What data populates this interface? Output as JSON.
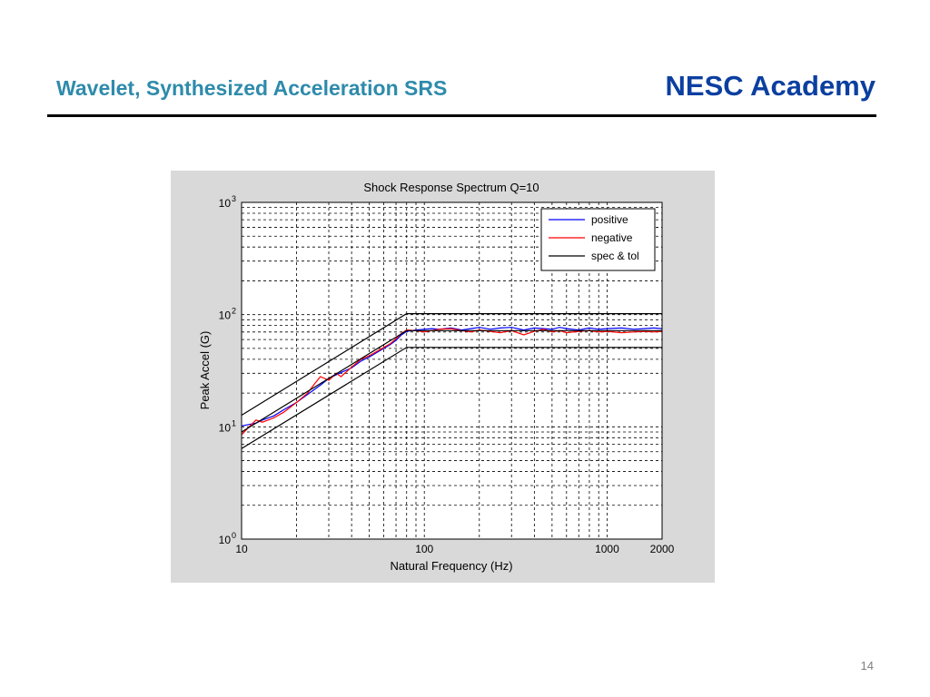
{
  "slide": {
    "title": "Wavelet, Synthesized Acceleration SRS",
    "brand": "NESC Academy",
    "page_number": "14"
  },
  "colors": {
    "title": "#2e8bab",
    "brand": "#0b3fa0",
    "figure_background": "#d9d9d9",
    "positive": "#0000ff",
    "negative": "#ff0000",
    "spec": "#000000"
  },
  "chart_data": {
    "type": "line",
    "title": "Shock Response Spectrum Q=10",
    "xlabel": "Natural Frequency (Hz)",
    "ylabel": "Peak Accel (G)",
    "xscale": "log",
    "yscale": "log",
    "xlim": [
      10,
      2000
    ],
    "ylim": [
      1,
      1000
    ],
    "x_ticks": [
      10,
      100,
      1000,
      2000
    ],
    "x_tick_labels": [
      "10",
      "100",
      "1000",
      "2000"
    ],
    "y_ticks": [
      1,
      10,
      100,
      1000
    ],
    "y_tick_labels": [
      {
        "base": "10",
        "exp": "0"
      },
      {
        "base": "10",
        "exp": "1"
      },
      {
        "base": "10",
        "exp": "2"
      },
      {
        "base": "10",
        "exp": "3"
      }
    ],
    "grid": true,
    "grid_style": "dashed",
    "legend_position": "top-right",
    "series": [
      {
        "name": "positive",
        "color": "#0000ff",
        "x": [
          10,
          11,
          12,
          13,
          15,
          17,
          20,
          23,
          27,
          30,
          35,
          40,
          45,
          50,
          55,
          60,
          65,
          70,
          75,
          80,
          90,
          100,
          110,
          120,
          140,
          160,
          180,
          200,
          230,
          260,
          300,
          350,
          400,
          450,
          500,
          550,
          600,
          700,
          800,
          900,
          1000,
          1200,
          1400,
          1600,
          1800,
          2000
        ],
        "y": [
          10.2,
          10.5,
          10.8,
          11.5,
          12.5,
          14.2,
          16.5,
          19.5,
          23.5,
          27,
          30.5,
          33.5,
          38.5,
          42,
          46,
          50,
          54,
          59,
          66,
          71,
          73,
          74,
          75,
          74,
          76,
          73,
          75,
          77,
          74,
          76,
          77,
          73,
          76,
          75,
          74,
          77,
          75,
          73,
          76,
          74,
          75,
          76,
          74,
          75,
          76,
          75
        ]
      },
      {
        "name": "negative",
        "color": "#ff0000",
        "x": [
          10,
          11,
          12,
          13,
          15,
          17,
          20,
          23,
          25,
          27,
          30,
          33,
          35,
          40,
          45,
          50,
          55,
          60,
          65,
          70,
          75,
          80,
          90,
          100,
          110,
          120,
          140,
          160,
          180,
          200,
          230,
          260,
          300,
          350,
          400,
          450,
          500,
          550,
          600,
          700,
          800,
          900,
          1000,
          1200,
          1400,
          1600,
          1800,
          2000
        ],
        "y": [
          8.5,
          10,
          11.5,
          11,
          12,
          13.5,
          16.5,
          20,
          24,
          28,
          26,
          30,
          28,
          34,
          40,
          43,
          47,
          51,
          55,
          61,
          68,
          73,
          72,
          70,
          72,
          74,
          75,
          72,
          70,
          73,
          71,
          69,
          72,
          66,
          71,
          74,
          70,
          72,
          69,
          71,
          72,
          70,
          71,
          69,
          70,
          71,
          70,
          71
        ]
      },
      {
        "name": "spec & tol",
        "color": "#000000",
        "x": [
          10,
          80,
          2000
        ],
        "y": [
          9,
          72,
          72
        ]
      },
      {
        "name": "",
        "color": "#000000",
        "x": [
          10,
          80,
          2000
        ],
        "y": [
          12.7,
          102,
          102
        ]
      },
      {
        "name": "",
        "color": "#000000",
        "x": [
          10,
          80,
          2000
        ],
        "y": [
          6.4,
          51,
          51
        ]
      }
    ]
  }
}
